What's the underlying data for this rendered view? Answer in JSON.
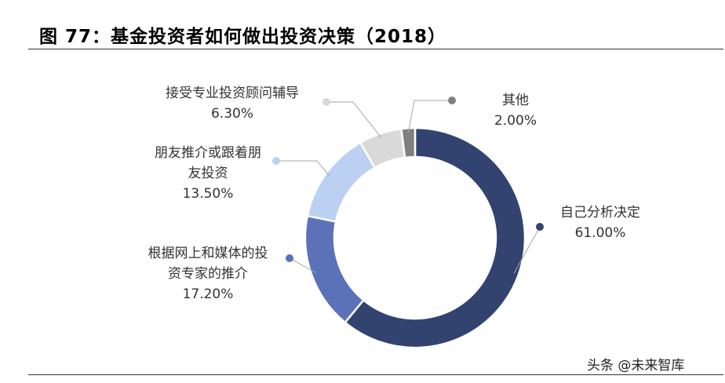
{
  "title": "图 77：基金投资者如何做出投资决策（2018）",
  "watermark": "头条 @未来智库",
  "chart_data": {
    "type": "pie",
    "variant": "donut",
    "title": "",
    "slices": [
      {
        "label": "自己分析决定",
        "lines": [
          "自己分析决定"
        ],
        "value": 61.0,
        "value_label": "61.00%",
        "color": "#334370"
      },
      {
        "label": "根据网上和媒体的投资专家的推介",
        "lines": [
          "根据网上和媒体的投",
          "资专家的推介"
        ],
        "value": 17.2,
        "value_label": "17.20%",
        "color": "#5B72B9"
      },
      {
        "label": "朋友推介或跟着朋友投资",
        "lines": [
          "朋友推介或跟着朋",
          "友投资"
        ],
        "value": 13.5,
        "value_label": "13.50%",
        "color": "#BCD0F2"
      },
      {
        "label": "接受专业投资顾问辅导",
        "lines": [
          "接受专业投资顾问辅导"
        ],
        "value": 6.3,
        "value_label": "6.30%",
        "color": "#D9D9D9"
      },
      {
        "label": "其他",
        "lines": [
          "其他"
        ],
        "value": 2.0,
        "value_label": "2.00%",
        "color": "#7F7F7F"
      }
    ]
  }
}
